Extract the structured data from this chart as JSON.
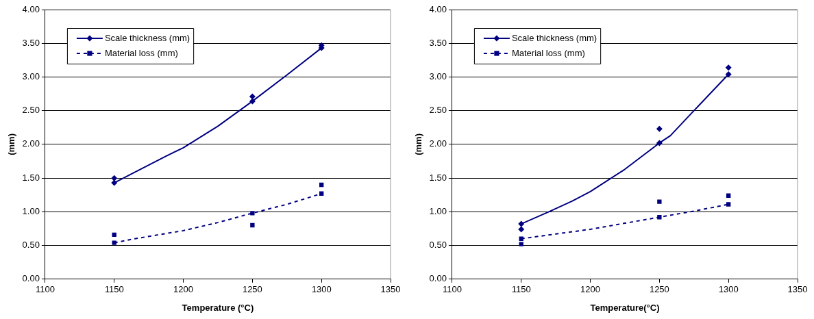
{
  "chart_data": [
    {
      "type": "scatter",
      "xlabel": "Temperature (°C)",
      "ylabel": "(mm)",
      "xlim": [
        1100,
        1350
      ],
      "xticks": [
        1100,
        1150,
        1200,
        1250,
        1300,
        1350
      ],
      "ylim": [
        0,
        4
      ],
      "yticks": [
        {
          "value": 0,
          "label": "0.00"
        },
        {
          "value": 0.5,
          "label": "0.50"
        },
        {
          "value": 1,
          "label": "1.00"
        },
        {
          "value": 1.5,
          "label": "1.50"
        },
        {
          "value": 2,
          "label": "2.00"
        },
        {
          "value": 2.5,
          "label": "2.50"
        },
        {
          "value": 3,
          "label": "3.00"
        },
        {
          "value": 3.5,
          "label": "3.50"
        },
        {
          "value": 4,
          "label": "4.00"
        }
      ],
      "grid": "y",
      "legend": "top left",
      "series": [
        {
          "name": "Scale thickness (mm)",
          "marker": "diamond",
          "color": "#000080",
          "x": [
            1150,
            1150,
            1250,
            1250,
            1300,
            1300
          ],
          "values": [
            1.5,
            1.43,
            2.71,
            2.64,
            3.47,
            3.43
          ]
        },
        {
          "type": "line",
          "marker": "none",
          "line_style": "solid",
          "color": "#000080",
          "x": [
            1150,
            1187,
            1200,
            1225,
            1250,
            1275,
            1300
          ],
          "values": [
            1.43,
            1.82,
            1.95,
            2.27,
            2.64,
            3.03,
            3.43
          ]
        },
        {
          "name": "Material loss (mm)",
          "marker": "square",
          "color": "#000080",
          "x": [
            1150,
            1150,
            1250,
            1250,
            1300,
            1300
          ],
          "values": [
            0.66,
            0.54,
            0.98,
            0.8,
            1.4,
            1.27
          ]
        },
        {
          "type": "line",
          "marker": "none",
          "line_style": "dashed",
          "color": "#000080",
          "x": [
            1150,
            1165,
            1200,
            1225,
            1250,
            1275,
            1300
          ],
          "values": [
            0.54,
            0.6,
            0.72,
            0.84,
            0.98,
            1.11,
            1.27
          ]
        }
      ]
    },
    {
      "type": "scatter",
      "xlabel": "Temperature(°C)",
      "ylabel": "(mm)",
      "xlim": [
        1100,
        1350
      ],
      "xticks": [
        1100,
        1150,
        1200,
        1250,
        1300,
        1350
      ],
      "ylim": [
        0,
        4
      ],
      "yticks": [
        {
          "value": 0,
          "label": "0.00"
        },
        {
          "value": 0.5,
          "label": "0.50"
        },
        {
          "value": 1,
          "label": "1.00"
        },
        {
          "value": 1.5,
          "label": "1.50"
        },
        {
          "value": 2,
          "label": "2.00"
        },
        {
          "value": 2.5,
          "label": "2.50"
        },
        {
          "value": 3,
          "label": "3.00"
        },
        {
          "value": 3.5,
          "label": "3.50"
        },
        {
          "value": 4,
          "label": "4.00"
        }
      ],
      "grid": "y",
      "legend": "top left",
      "series": [
        {
          "name": "Scale thickness (mm)",
          "marker": "diamond",
          "color": "#000080",
          "x": [
            1150,
            1150,
            1250,
            1250,
            1300,
            1300
          ],
          "values": [
            0.82,
            0.74,
            2.23,
            2.02,
            3.14,
            3.04
          ]
        },
        {
          "type": "line",
          "marker": "none",
          "line_style": "solid",
          "color": "#000080",
          "x": [
            1150,
            1170,
            1187,
            1200,
            1225,
            1250,
            1258,
            1275,
            1300
          ],
          "values": [
            0.82,
            1.0,
            1.16,
            1.3,
            1.63,
            2.02,
            2.13,
            2.5,
            3.04
          ]
        },
        {
          "name": "Material loss (mm)",
          "marker": "square",
          "color": "#000080",
          "x": [
            1150,
            1150,
            1250,
            1250,
            1300,
            1300
          ],
          "values": [
            0.6,
            0.52,
            1.15,
            0.92,
            1.24,
            1.11
          ]
        },
        {
          "type": "line",
          "marker": "none",
          "line_style": "dashed",
          "color": "#000080",
          "x": [
            1150,
            1175,
            1200,
            1225,
            1250,
            1275,
            1300
          ],
          "values": [
            0.6,
            0.67,
            0.74,
            0.83,
            0.92,
            1.01,
            1.11
          ]
        }
      ]
    }
  ]
}
